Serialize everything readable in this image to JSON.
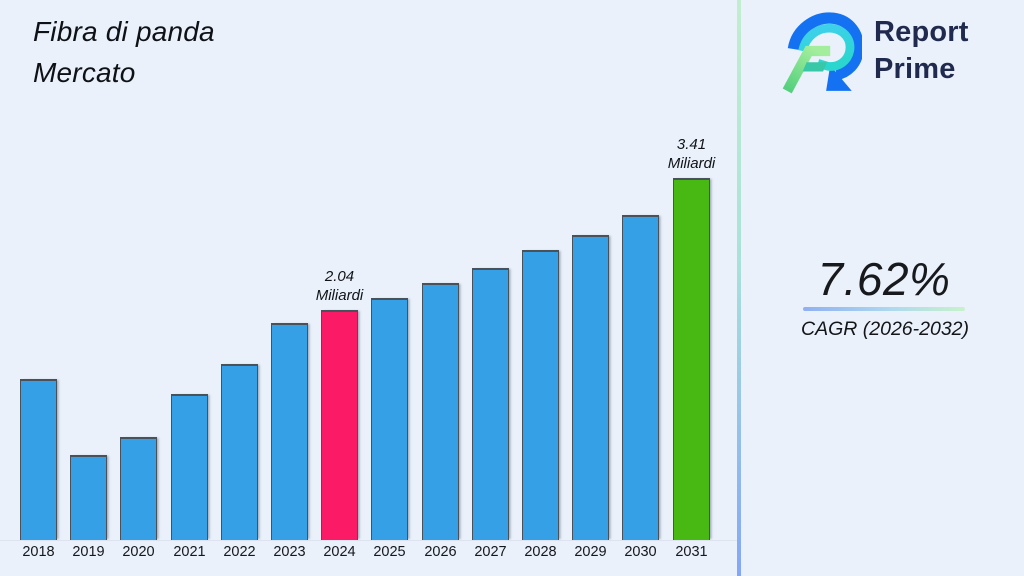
{
  "page": {
    "background": "#eaf1fb"
  },
  "header": {
    "title": "Fibra di panda\nMercato"
  },
  "logo": {
    "line1": "Report",
    "line2": "Prime",
    "text_color": "#1f2a4e"
  },
  "cagr": {
    "value": "7.62%",
    "caption": "CAGR (2026-2032)"
  },
  "chart_data": {
    "type": "bar",
    "title": "Fibra di panda Mercato",
    "unit": "Miliardi",
    "xlabel": "",
    "ylabel": "",
    "grid": false,
    "legend": false,
    "categories": [
      "2018",
      "2019",
      "2020",
      "2021",
      "2022",
      "2023",
      "2024",
      "2025",
      "2026",
      "2027",
      "2028",
      "2029",
      "2030",
      "2031"
    ],
    "values": [
      1.32,
      0.54,
      0.72,
      1.17,
      1.48,
      1.91,
      2.04,
      2.17,
      2.32,
      2.48,
      2.66,
      2.82,
      3.03,
      3.41
    ],
    "labeled_years": [
      "2024",
      "2031"
    ],
    "colors": {
      "default": "#36a0e6",
      "highlight_base_year": "#fb1a66",
      "highlight_forecast_year": "#47b912"
    },
    "points": [
      {
        "year": "2018",
        "value": 1.32,
        "color": "#36a0e6",
        "labeled": false
      },
      {
        "year": "2019",
        "value": 0.54,
        "color": "#36a0e6",
        "labeled": false
      },
      {
        "year": "2020",
        "value": 0.72,
        "color": "#36a0e6",
        "labeled": false
      },
      {
        "year": "2021",
        "value": 1.17,
        "color": "#36a0e6",
        "labeled": false
      },
      {
        "year": "2022",
        "value": 1.48,
        "color": "#36a0e6",
        "labeled": false
      },
      {
        "year": "2023",
        "value": 1.91,
        "color": "#36a0e6",
        "labeled": false
      },
      {
        "year": "2024",
        "value": 2.04,
        "color": "#fb1a66",
        "labeled": true,
        "label": "2.04 Miliardi"
      },
      {
        "year": "2025",
        "value": 2.17,
        "color": "#36a0e6",
        "labeled": false
      },
      {
        "year": "2026",
        "value": 2.32,
        "color": "#36a0e6",
        "labeled": false
      },
      {
        "year": "2027",
        "value": 2.48,
        "color": "#36a0e6",
        "labeled": false
      },
      {
        "year": "2028",
        "value": 2.66,
        "color": "#36a0e6",
        "labeled": false
      },
      {
        "year": "2029",
        "value": 2.82,
        "color": "#36a0e6",
        "labeled": false
      },
      {
        "year": "2030",
        "value": 3.03,
        "color": "#36a0e6",
        "labeled": false
      },
      {
        "year": "2031",
        "value": 3.41,
        "color": "#47b912",
        "labeled": true,
        "label": "3.41 Miliardi"
      }
    ]
  }
}
